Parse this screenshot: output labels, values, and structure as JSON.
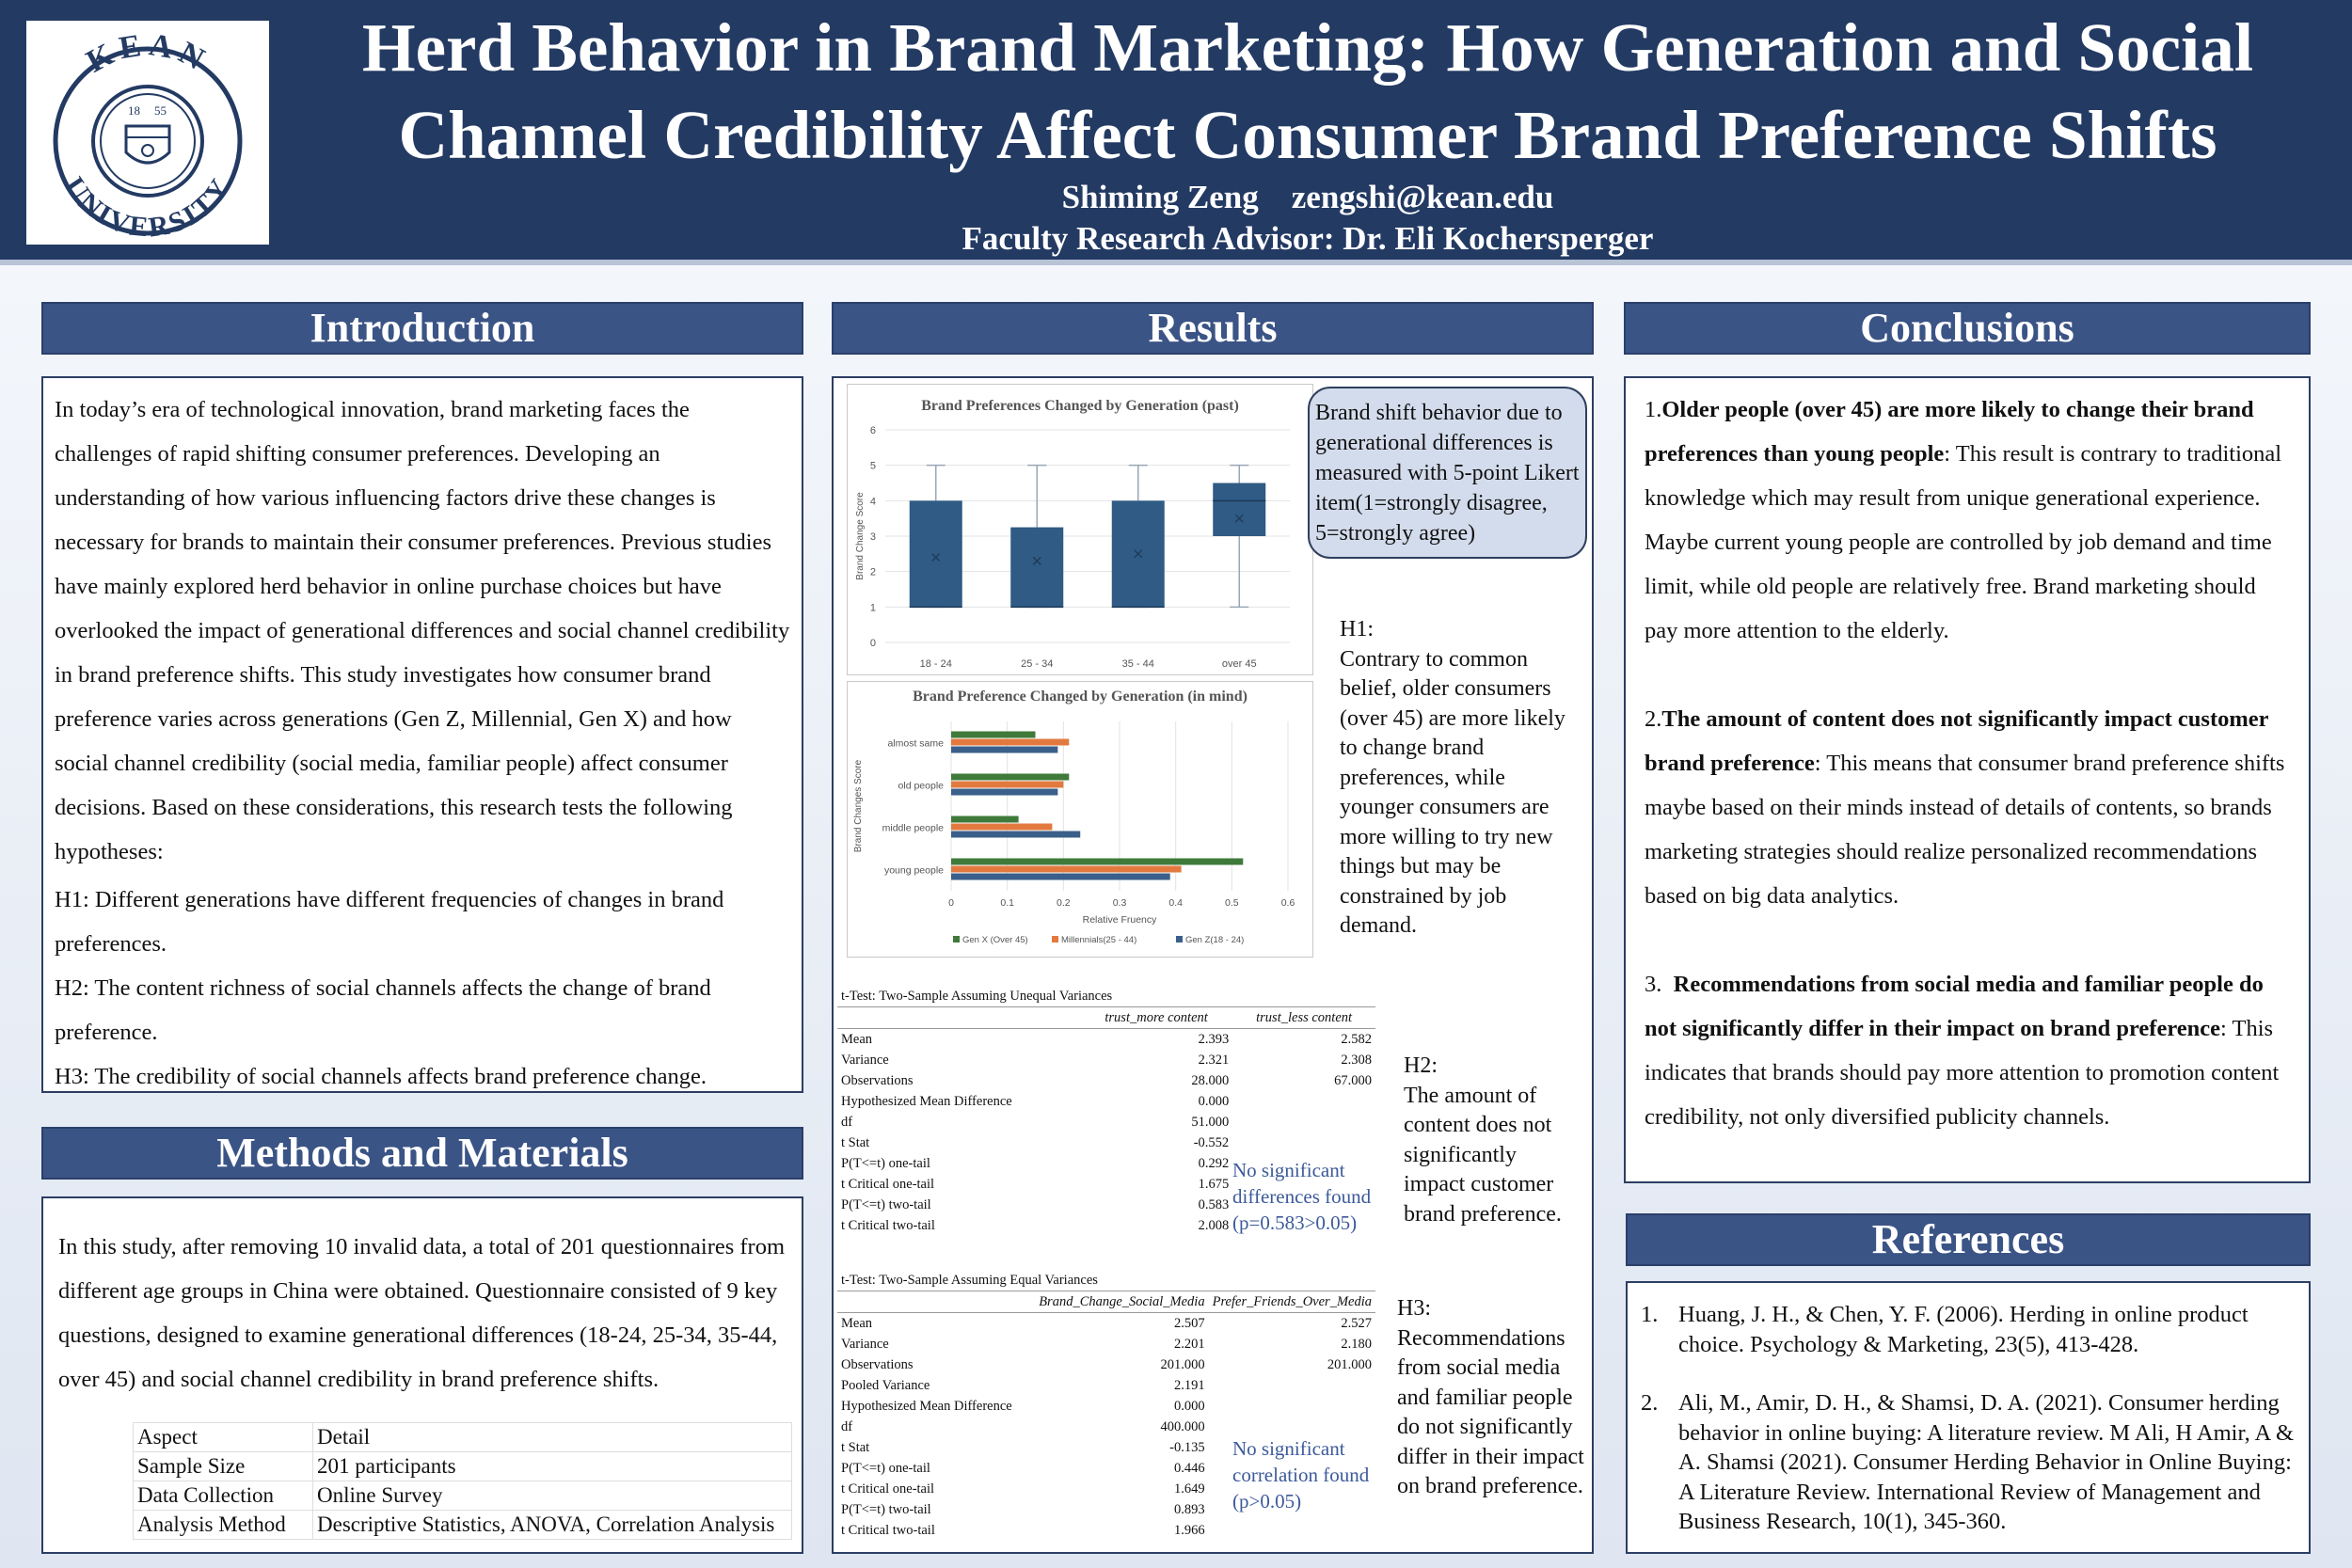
{
  "header": {
    "logo": {
      "text_top": "KEAN",
      "text_bottom": "UNIVERSITY",
      "year_left": "18",
      "year_right": "55"
    },
    "title_line1": "Herd Behavior in Brand Marketing: How Generation and Social",
    "title_line2": "Channel Credibility Affect Consumer Brand Preference Shifts",
    "author": "Shiming Zeng    zengshi@kean.edu",
    "advisor": "Faculty Research Advisor: Dr. Eli Kochersperger"
  },
  "introduction": {
    "heading": "Introduction",
    "body": "In today’s era of technological innovation, brand marketing faces the challenges of rapid shifting consumer preferences. Developing an understanding of how various influencing factors drive these changes is necessary for brands to maintain their consumer preferences. Previous studies have mainly explored herd behavior in online purchase choices but have overlooked the impact of generational differences and social channel credibility in brand preference shifts. This study investigates how consumer brand preference varies across generations (Gen Z, Millennial, Gen X) and how social channel credibility (social media, familiar people) affect consumer decisions. Based on these considerations, this research tests the following hypotheses:",
    "h1": "H1: Different generations have different frequencies of changes in brand preferences.",
    "h2": "H2: The content richness of social channels affects the change of brand preference.",
    "h3": "H3: The credibility of social channels affects brand preference change."
  },
  "methods": {
    "heading": "Methods and Materials",
    "body": "In this study, after removing 10 invalid data, a total of 201 questionnaires from different age groups in China were obtained. Questionnaire consisted of 9 key questions, designed to examine generational differences (18-24, 25-34, 35-44, over 45) and social channel credibility in brand preference shifts.",
    "table": [
      [
        "Aspect",
        "Detail"
      ],
      [
        "Sample Size",
        "201 participants"
      ],
      [
        "Data Collection",
        "Online Survey"
      ],
      [
        "Analysis Method",
        "Descriptive Statistics, ANOVA, Correlation Analysis"
      ]
    ]
  },
  "results": {
    "heading": "Results",
    "bubble": "Brand shift behavior due to generational differences is measured with 5-point Likert item(1=strongly disagree, 5=strongly agree)",
    "h1_label": "H1:",
    "h1_text": "Contrary to common belief, older consumers (over 45) are more likely to change brand preferences, while younger consumers are more willing to try new things but may be constrained by job demand.",
    "h2_label": "H2:",
    "h2_text": "The amount of content does not significantly impact customer brand preference.",
    "h3_label": "H3:",
    "h3_text": "Recommendations from social media and familiar people do not significantly differ in their impact on brand preference.",
    "note1": "No significant differences found (p=0.583>0.05)",
    "note2": "No significant correlation found (p>0.05)",
    "ttest1": {
      "caption": "t-Test: Two-Sample Assuming Unequal Variances",
      "columns": [
        "trust_more content",
        "trust_less content"
      ],
      "rows": [
        [
          "Mean",
          "2.393",
          "2.582"
        ],
        [
          "Variance",
          "2.321",
          "2.308"
        ],
        [
          "Observations",
          "28.000",
          "67.000"
        ],
        [
          "Hypothesized Mean Difference",
          "0.000",
          ""
        ],
        [
          "df",
          "51.000",
          ""
        ],
        [
          "t Stat",
          "-0.552",
          ""
        ],
        [
          "P(T<=t) one-tail",
          "0.292",
          ""
        ],
        [
          "t Critical one-tail",
          "1.675",
          ""
        ],
        [
          "P(T<=t) two-tail",
          "0.583",
          ""
        ],
        [
          "t Critical two-tail",
          "2.008",
          ""
        ]
      ]
    },
    "ttest2": {
      "caption": "t-Test: Two-Sample Assuming Equal Variances",
      "columns": [
        "Brand_Change_Social_Media",
        "Prefer_Friends_Over_Media"
      ],
      "rows": [
        [
          "Mean",
          "2.507",
          "2.527"
        ],
        [
          "Variance",
          "2.201",
          "2.180"
        ],
        [
          "Observations",
          "201.000",
          "201.000"
        ],
        [
          "Pooled Variance",
          "2.191",
          ""
        ],
        [
          "Hypothesized Mean Difference",
          "0.000",
          ""
        ],
        [
          "df",
          "400.000",
          ""
        ],
        [
          "t Stat",
          "-0.135",
          ""
        ],
        [
          "P(T<=t) one-tail",
          "0.446",
          ""
        ],
        [
          "t Critical one-tail",
          "1.649",
          ""
        ],
        [
          "P(T<=t) two-tail",
          "0.893",
          ""
        ],
        [
          "t Critical two-tail",
          "1.966",
          ""
        ]
      ]
    }
  },
  "chart_data": [
    {
      "type": "box",
      "title": "Brand Preferences Changed by Generation (past)",
      "ylabel": "Brand Change Score",
      "ylim": [
        0,
        6
      ],
      "yticks": [
        0,
        1,
        2,
        3,
        4,
        5,
        6
      ],
      "categories": [
        "18 - 24",
        "25 - 34",
        "35 - 44",
        "over 45"
      ],
      "boxes": [
        {
          "min": 1,
          "q1": 1,
          "median": 1,
          "q3": 4,
          "max": 5,
          "mean": 2.4
        },
        {
          "min": 1,
          "q1": 1,
          "median": 1,
          "q3": 3.25,
          "max": 5,
          "mean": 2.3
        },
        {
          "min": 1,
          "q1": 1,
          "median": 1,
          "q3": 4,
          "max": 5,
          "mean": 2.5
        },
        {
          "min": 1,
          "q1": 3,
          "median": 4,
          "q3": 4.5,
          "max": 5,
          "mean": 3.5
        }
      ],
      "color": "#2f5b85"
    },
    {
      "type": "bar",
      "orientation": "horizontal",
      "title": "Brand Preference Changed by Generation (in mind)",
      "xlabel": "Relative Fruency",
      "ylabel": "Brand Changes Score",
      "xlim": [
        0,
        0.6
      ],
      "xticks": [
        0,
        0.1,
        0.2,
        0.3,
        0.4,
        0.5,
        0.6
      ],
      "categories": [
        "almost same",
        "old people",
        "middle people",
        "young people"
      ],
      "series": [
        {
          "name": "Gen X (Over 45)",
          "color": "#3f7a3a",
          "values": [
            0.15,
            0.21,
            0.12,
            0.52
          ]
        },
        {
          "name": "Millennials(25 - 44)",
          "color": "#e27a3f",
          "values": [
            0.21,
            0.2,
            0.18,
            0.41
          ]
        },
        {
          "name": "Gen Z(18 - 24)",
          "color": "#3a5f8a",
          "values": [
            0.19,
            0.19,
            0.23,
            0.39
          ]
        }
      ],
      "legend_position": "bottom"
    }
  ],
  "conclusions": {
    "heading": "Conclusions",
    "c1_num": "1.",
    "c1_bold": "Older people (over 45) are more likely to change their brand preferences than young people",
    "c1_text": ": This result is contrary to traditional knowledge which may result from unique generational experience. Maybe current young people are controlled by job demand and time limit, while old people are relatively free. Brand marketing should pay more attention to the elderly.",
    "c2_num": "2.",
    "c2_bold": "The amount of content does not significantly impact customer brand preference",
    "c2_text": ": This means that consumer brand preference shifts maybe based on their minds instead of details of contents, so brands marketing strategies should realize personalized recommendations based on big data analytics.",
    "c3_num": "3.  ",
    "c3_bold": "Recommendations from social media and familiar people do not significantly differ in their impact on brand preference",
    "c3_text": ": This indicates that brands should pay more attention to promotion content credibility, not only diversified publicity channels."
  },
  "references": {
    "heading": "References",
    "items": [
      {
        "num": "1.",
        "text": "Huang, J. H., & Chen, Y. F. (2006). Herding in online product choice. Psychology & Marketing, 23(5), 413-428."
      },
      {
        "num": "2.",
        "text": "Ali, M., Amir, D. H., & Shamsi, D. A. (2021). Consumer herding behavior in online buying: A literature review. M Ali, H Amir, A & A. Shamsi (2021). Consumer Herding Behavior in Online Buying: A Literature Review. International Review of Management and Business Research, 10(1), 345-360."
      }
    ]
  }
}
